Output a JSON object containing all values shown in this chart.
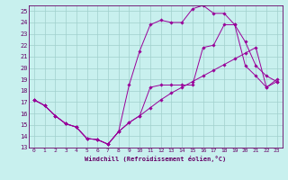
{
  "xlabel": "Windchill (Refroidissement éolien,°C)",
  "bg_color": "#c8f0ee",
  "grid_color": "#a0d0cc",
  "line_color": "#990099",
  "xlim": [
    -0.5,
    23.5
  ],
  "ylim": [
    13,
    25.5
  ],
  "xticks": [
    0,
    1,
    2,
    3,
    4,
    5,
    6,
    7,
    8,
    9,
    10,
    11,
    12,
    13,
    14,
    15,
    16,
    17,
    18,
    19,
    20,
    21,
    22,
    23
  ],
  "yticks": [
    13,
    14,
    15,
    16,
    17,
    18,
    19,
    20,
    21,
    22,
    23,
    24,
    25
  ],
  "line1_x": [
    0,
    1,
    2,
    3,
    4,
    5,
    6,
    7,
    8,
    9,
    10,
    11,
    12,
    13,
    14,
    15,
    16,
    17,
    18,
    19,
    20,
    21,
    22,
    23
  ],
  "line1_y": [
    17.2,
    16.7,
    15.8,
    15.1,
    14.8,
    13.8,
    13.7,
    13.3,
    14.4,
    15.2,
    15.8,
    16.5,
    17.2,
    17.8,
    18.3,
    18.8,
    19.3,
    19.8,
    20.3,
    20.8,
    21.3,
    21.8,
    18.3,
    19.0
  ],
  "line2_x": [
    0,
    1,
    2,
    3,
    4,
    5,
    6,
    7,
    8,
    9,
    10,
    11,
    12,
    13,
    14,
    15,
    16,
    17,
    18,
    19,
    20,
    21,
    22,
    23
  ],
  "line2_y": [
    17.2,
    16.7,
    15.8,
    15.1,
    14.8,
    13.8,
    13.7,
    13.3,
    14.4,
    18.5,
    21.5,
    23.8,
    24.2,
    24.0,
    24.0,
    25.2,
    25.5,
    24.8,
    24.8,
    23.8,
    22.3,
    20.2,
    19.3,
    18.8
  ],
  "line3_x": [
    0,
    1,
    2,
    3,
    4,
    5,
    6,
    7,
    8,
    9,
    10,
    11,
    12,
    13,
    14,
    15,
    16,
    17,
    18,
    19,
    20,
    21,
    22,
    23
  ],
  "line3_y": [
    17.2,
    16.7,
    15.8,
    15.1,
    14.8,
    13.8,
    13.7,
    13.3,
    14.4,
    15.2,
    15.8,
    18.3,
    18.5,
    18.5,
    18.5,
    18.5,
    21.8,
    22.0,
    23.8,
    23.8,
    20.2,
    19.3,
    18.3,
    18.8
  ]
}
